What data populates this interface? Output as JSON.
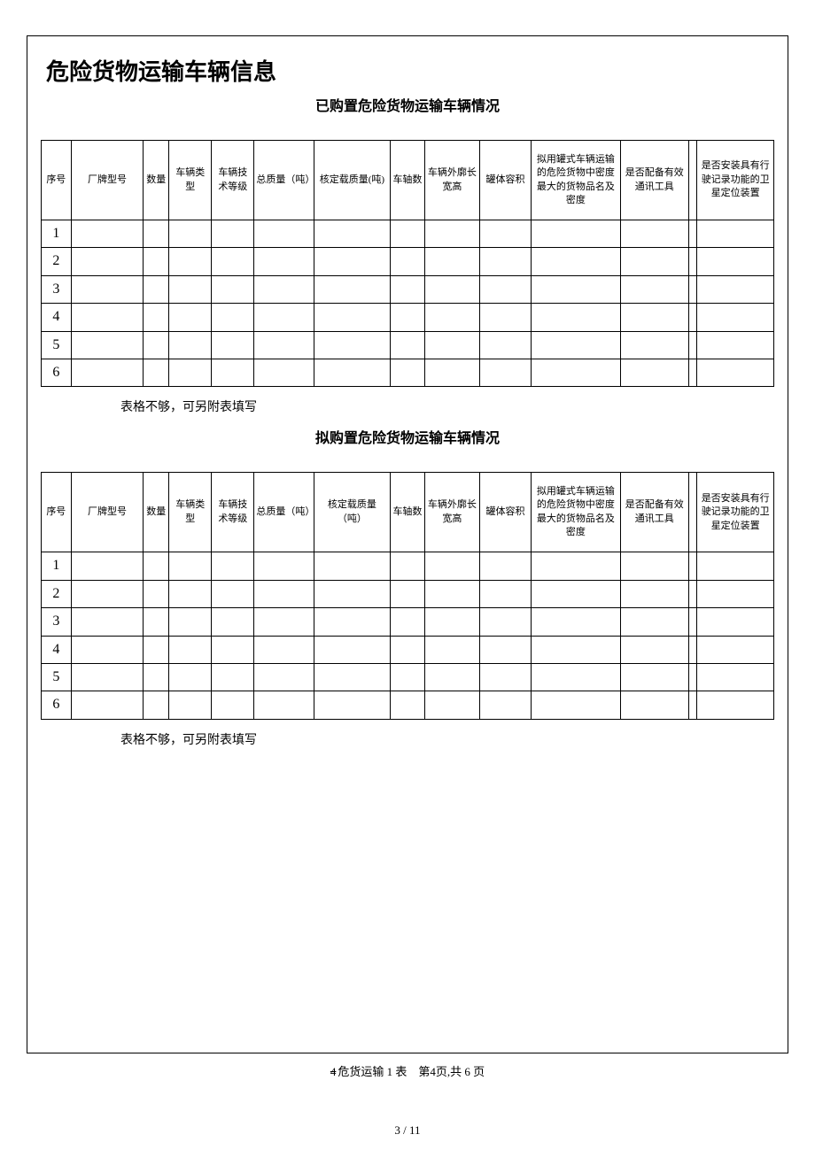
{
  "mainTitle": "危险货物运输车辆信息",
  "section1": {
    "title": "已购置危险货物运输车辆情况",
    "headers": [
      "序号",
      "厂牌型号",
      "数量",
      "车辆类型",
      "车辆技术等级",
      "总质量（吨）",
      "核定载质量(吨)",
      "车轴数",
      "车辆外廓长宽高",
      "罐体容积",
      "拟用罐式车辆运输的危险货物中密度最大的货物品名及密度",
      "是否配备有效通讯工具",
      "",
      "是否安装具有行驶记录功能的卫星定位装置"
    ],
    "rowNums": [
      "1",
      "2",
      "3",
      "4",
      "5",
      "6"
    ],
    "note": "表格不够，可另附表填写"
  },
  "section2": {
    "title": "拟购置危险货物运输车辆情况",
    "headers": [
      "序号",
      "厂牌型号",
      "数量",
      "车辆类型",
      "车辆技术等级",
      "总质量（吨）",
      "核定载质量（吨）",
      "车轴数",
      "车辆外廓长宽高",
      "罐体容积",
      "拟用罐式车辆运输的危险货物中密度最大的货物品名及密度",
      "是否配备有效通讯工具",
      "",
      "是否安装具有行驶记录功能的卫星定位装置"
    ],
    "rowNums": [
      "1",
      "2",
      "3",
      "4",
      "5",
      "6"
    ],
    "note": "表格不够，可另附表填写"
  },
  "footer": {
    "strike": "4",
    "text": "危货运输 1 表　第4页,共 6 页"
  },
  "pageNum": "3 / 11"
}
